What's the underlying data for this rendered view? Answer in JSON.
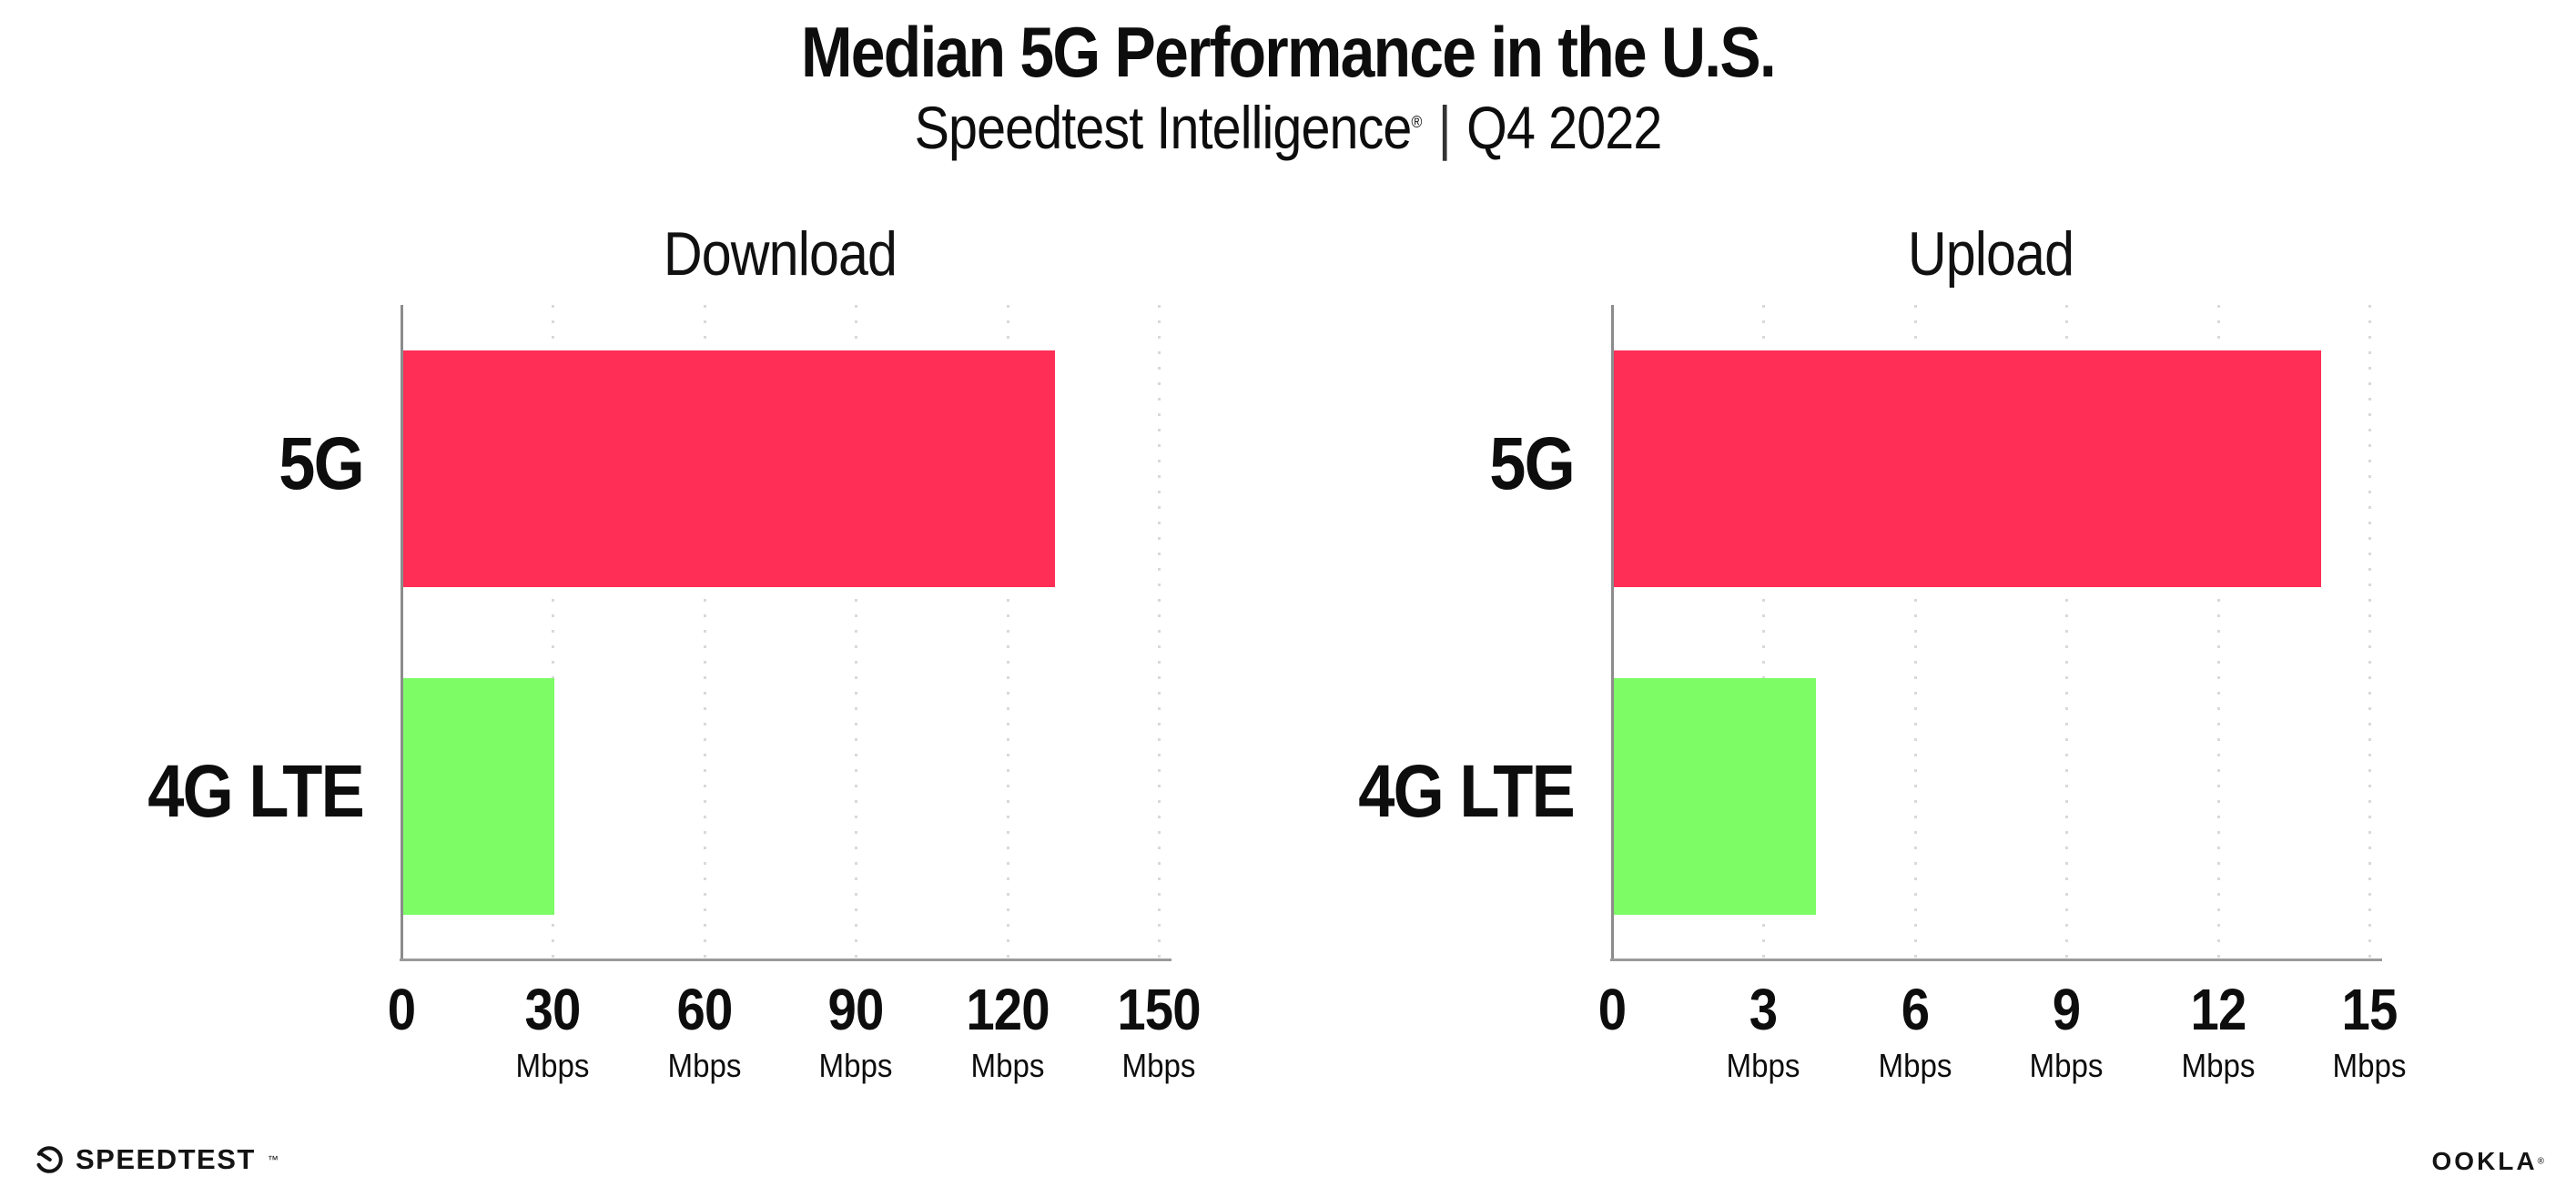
{
  "page": {
    "background": "#ffffff",
    "text_color": "#0d0d0d"
  },
  "header": {
    "title": "Median 5G Performance in the U.S.",
    "subtitle_brand": "Speedtest Intelligence",
    "subtitle_reg": "®",
    "subtitle_separator": "|",
    "subtitle_period": "Q4 2022"
  },
  "chart_data": [
    {
      "type": "bar",
      "orientation": "horizontal",
      "title": "Download",
      "categories": [
        "5G",
        "4G LTE"
      ],
      "values": [
        129,
        30
      ],
      "value_unit": "Mbps",
      "bar_colors": [
        "#ff2e56",
        "#7dfc66"
      ],
      "xlim": [
        0,
        150
      ],
      "x_tick_step": 30,
      "x_tick_labels": [
        "0",
        "30",
        "60",
        "90",
        "120",
        "150"
      ],
      "x_tick_unit": "Mbps",
      "grid": "vertical-dotted",
      "legend_position": "none"
    },
    {
      "type": "bar",
      "orientation": "horizontal",
      "title": "Upload",
      "categories": [
        "5G",
        "4G LTE"
      ],
      "values": [
        14,
        4
      ],
      "value_unit": "Mbps",
      "bar_colors": [
        "#ff2e56",
        "#7dfc66"
      ],
      "xlim": [
        0,
        15
      ],
      "x_tick_step": 3,
      "x_tick_labels": [
        "0",
        "3",
        "6",
        "9",
        "12",
        "15"
      ],
      "x_tick_unit": "Mbps",
      "grid": "vertical-dotted",
      "legend_position": "none"
    }
  ],
  "colors": {
    "bar_5g": "#ff2e56",
    "bar_4g_lte": "#7dfc66",
    "axis_line": "#9a9a9a",
    "gridline": "#d9d9d9",
    "text": "#0d0d0d"
  },
  "footer": {
    "speedtest_text": "SPEEDTEST",
    "speedtest_tm": "™",
    "ookla_text": "OOKLA",
    "ookla_reg": "®"
  }
}
